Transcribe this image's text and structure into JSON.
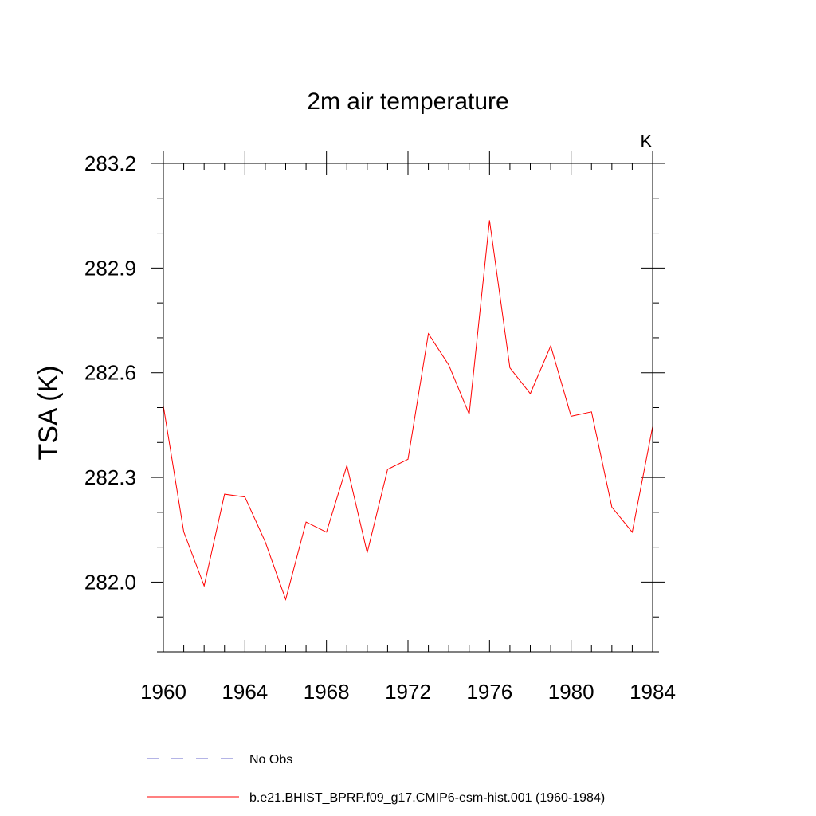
{
  "chart_data": {
    "type": "line",
    "title": "2m air temperature",
    "units_label": "K",
    "xlabel": "",
    "ylabel": "TSA  (K)",
    "xlim": [
      1960,
      1984
    ],
    "ylim": [
      281.8,
      283.2
    ],
    "x_ticks": [
      1960,
      1964,
      1968,
      1972,
      1976,
      1980,
      1984
    ],
    "x_tick_labels": [
      "1960",
      "1964",
      "1968",
      "1972",
      "1976",
      "1980",
      "1984"
    ],
    "y_ticks": [
      282.0,
      282.3,
      282.6,
      282.9,
      283.2
    ],
    "y_tick_labels": [
      "282.0",
      "282.3",
      "282.6",
      "282.9",
      "283.2"
    ],
    "x_minor_step": 1,
    "y_minor_step": 0.1,
    "series": [
      {
        "name": "b.e21.BHIST_BPRP.f09_g17.CMIP6-esm-hist.001 (1960-1984)",
        "color": "#ff0000",
        "style": "solid",
        "x": [
          1960,
          1961,
          1962,
          1963,
          1964,
          1965,
          1966,
          1967,
          1968,
          1969,
          1970,
          1971,
          1972,
          1973,
          1974,
          1975,
          1976,
          1977,
          1978,
          1979,
          1980,
          1981,
          1982,
          1983,
          1984
        ],
        "values": [
          282.505,
          282.144,
          281.989,
          282.252,
          282.244,
          282.115,
          281.95,
          282.172,
          282.143,
          282.334,
          282.084,
          282.323,
          282.352,
          282.712,
          282.622,
          282.481,
          283.037,
          282.614,
          282.54,
          282.677,
          282.475,
          282.488,
          282.215,
          282.143,
          282.446
        ]
      }
    ],
    "legend": [
      {
        "label": "No Obs",
        "color": "#6a6acd",
        "style": "dashed"
      },
      {
        "label": "b.e21.BHIST_BPRP.f09_g17.CMIP6-esm-hist.001 (1960-1984)",
        "color": "#ff0000",
        "style": "solid"
      }
    ]
  }
}
